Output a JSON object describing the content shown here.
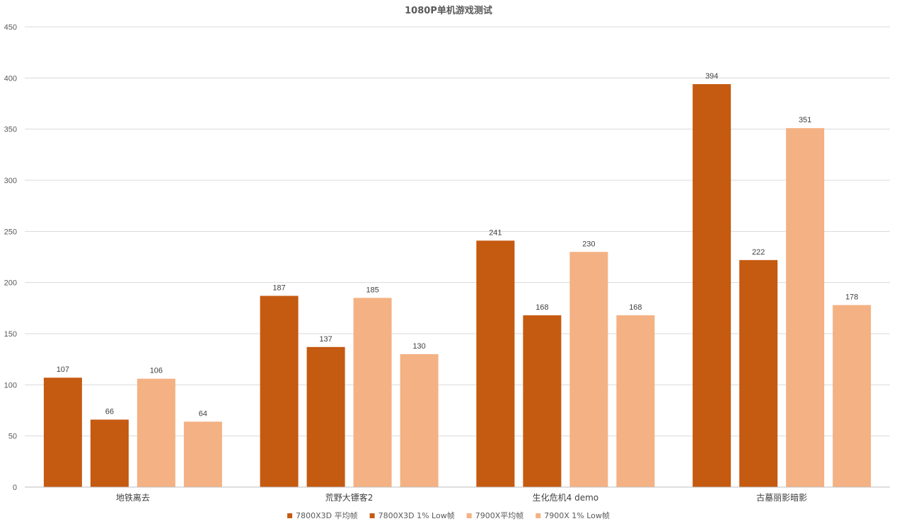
{
  "chart_data": {
    "type": "bar",
    "title": "1080P单机游戏测试",
    "xlabel": "",
    "ylabel": "",
    "ylim": [
      0,
      450
    ],
    "yticks": [
      0,
      50,
      100,
      150,
      200,
      250,
      300,
      350,
      400,
      450
    ],
    "grid": true,
    "legend_position": "bottom",
    "categories": [
      "地铁离去",
      "荒野大镖客2",
      "生化危机4 demo",
      "古墓丽影暗影"
    ],
    "series": [
      {
        "name": "7800X3D 平均帧",
        "color": "#c55a11",
        "values": [
          107,
          187,
          241,
          394
        ]
      },
      {
        "name": "7800X3D 1% Low帧",
        "color": "#c55a11",
        "values": [
          66,
          137,
          168,
          222
        ]
      },
      {
        "name": "7900X平均帧",
        "color": "#f4b183",
        "values": [
          106,
          185,
          230,
          351
        ]
      },
      {
        "name": "7900X 1% Low帧",
        "color": "#f4b183",
        "values": [
          64,
          130,
          168,
          178
        ]
      }
    ]
  }
}
